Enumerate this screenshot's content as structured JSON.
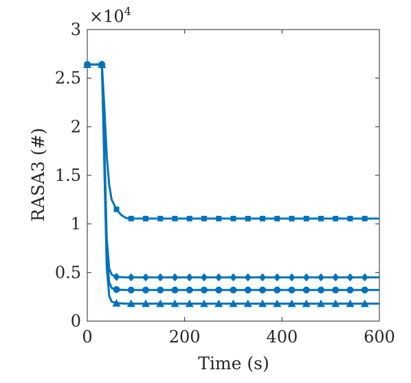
{
  "chart_data": {
    "type": "line",
    "xlabel": "Time (s)",
    "ylabel": "RASA3 (#)",
    "xlim": [
      0,
      600
    ],
    "ylim": [
      0,
      30000
    ],
    "xticks": [
      0,
      200,
      400,
      600
    ],
    "xtick_labels": [
      "0",
      "200",
      "400",
      "600"
    ],
    "yticks": [
      0,
      5000,
      10000,
      15000,
      20000,
      25000,
      30000
    ],
    "ytick_labels": [
      "0",
      "0.5",
      "1",
      "1.5",
      "2",
      "2.5",
      "3"
    ],
    "y_exponent_label": "×10",
    "y_exponent_power": "4",
    "grid": false,
    "line_color": "#0072BD",
    "series": [
      {
        "marker": "square",
        "values": [
          [
            0,
            26400
          ],
          [
            30,
            26400
          ],
          [
            35,
            22000
          ],
          [
            40,
            17000
          ],
          [
            45,
            14000
          ],
          [
            50,
            12500
          ],
          [
            60,
            11500
          ],
          [
            70,
            10900
          ],
          [
            80,
            10600
          ],
          [
            90,
            10550
          ],
          [
            120,
            10550
          ],
          [
            600,
            10550
          ]
        ],
        "marker_x": [
          0,
          30,
          60,
          90,
          120,
          150,
          180,
          210,
          240,
          270,
          300,
          330,
          360,
          390,
          420,
          450,
          480,
          510,
          540,
          570
        ]
      },
      {
        "marker": "diamond",
        "values": [
          [
            0,
            26400
          ],
          [
            30,
            26400
          ],
          [
            35,
            18000
          ],
          [
            40,
            8500
          ],
          [
            45,
            5400
          ],
          [
            50,
            4800
          ],
          [
            60,
            4550
          ],
          [
            80,
            4500
          ],
          [
            600,
            4500
          ]
        ],
        "marker_x": [
          0,
          30,
          60,
          90,
          120,
          150,
          180,
          210,
          240,
          270,
          300,
          330,
          360,
          390,
          420,
          450,
          480,
          510,
          540,
          570
        ]
      },
      {
        "marker": "circle",
        "values": [
          [
            0,
            26400
          ],
          [
            30,
            26400
          ],
          [
            35,
            17000
          ],
          [
            40,
            7000
          ],
          [
            45,
            4000
          ],
          [
            50,
            3400
          ],
          [
            60,
            3250
          ],
          [
            80,
            3200
          ],
          [
            600,
            3200
          ]
        ],
        "marker_x": [
          0,
          30,
          60,
          90,
          120,
          150,
          180,
          210,
          240,
          270,
          300,
          330,
          360,
          390,
          420,
          450,
          480,
          510,
          540,
          570
        ]
      },
      {
        "marker": "triangle",
        "values": [
          [
            0,
            26400
          ],
          [
            30,
            26400
          ],
          [
            35,
            16000
          ],
          [
            40,
            5500
          ],
          [
            45,
            2600
          ],
          [
            50,
            2000
          ],
          [
            60,
            1850
          ],
          [
            80,
            1800
          ],
          [
            600,
            1800
          ]
        ],
        "marker_x": [
          0,
          30,
          60,
          90,
          120,
          150,
          180,
          210,
          240,
          270,
          300,
          330,
          360,
          390,
          420,
          450,
          480,
          510,
          540,
          570
        ]
      }
    ]
  }
}
